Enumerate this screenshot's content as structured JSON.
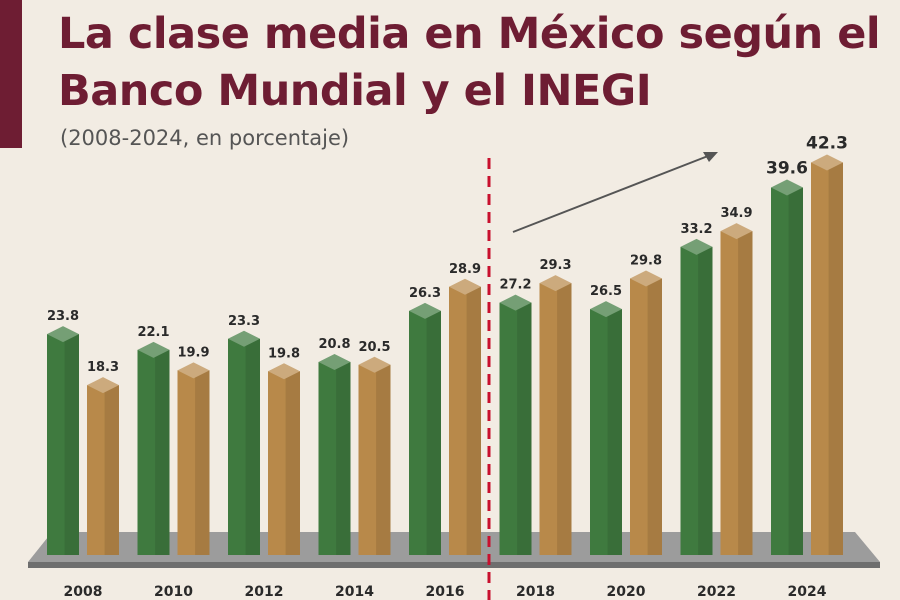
{
  "header": {
    "title": "La clase media en México según el Banco Mundial y el INEGI",
    "subtitle": "(2008-2024, en porcentaje)"
  },
  "colors": {
    "accent": "#6e1d33",
    "series_green": "#3f7a3f",
    "series_gold": "#b8894a",
    "divider": "#c8102e"
  },
  "chart_data": {
    "type": "bar",
    "title": "La clase media en México según el Banco Mundial y el INEGI",
    "subtitle": "(2008-2024, en porcentaje)",
    "categories": [
      "2008",
      "2010",
      "2012",
      "2014",
      "2016",
      "2018",
      "2020",
      "2022",
      "2024"
    ],
    "series": [
      {
        "values": [
          23.8,
          22.1,
          23.3,
          20.8,
          26.3,
          27.2,
          26.5,
          33.2,
          39.6
        ]
      },
      {
        "values": [
          18.3,
          19.9,
          19.8,
          20.5,
          28.9,
          29.3,
          29.8,
          34.9,
          42.3
        ]
      }
    ],
    "ylim": [
      0,
      45
    ],
    "xlabel": "",
    "ylabel": "",
    "grid": false,
    "legend": false
  }
}
